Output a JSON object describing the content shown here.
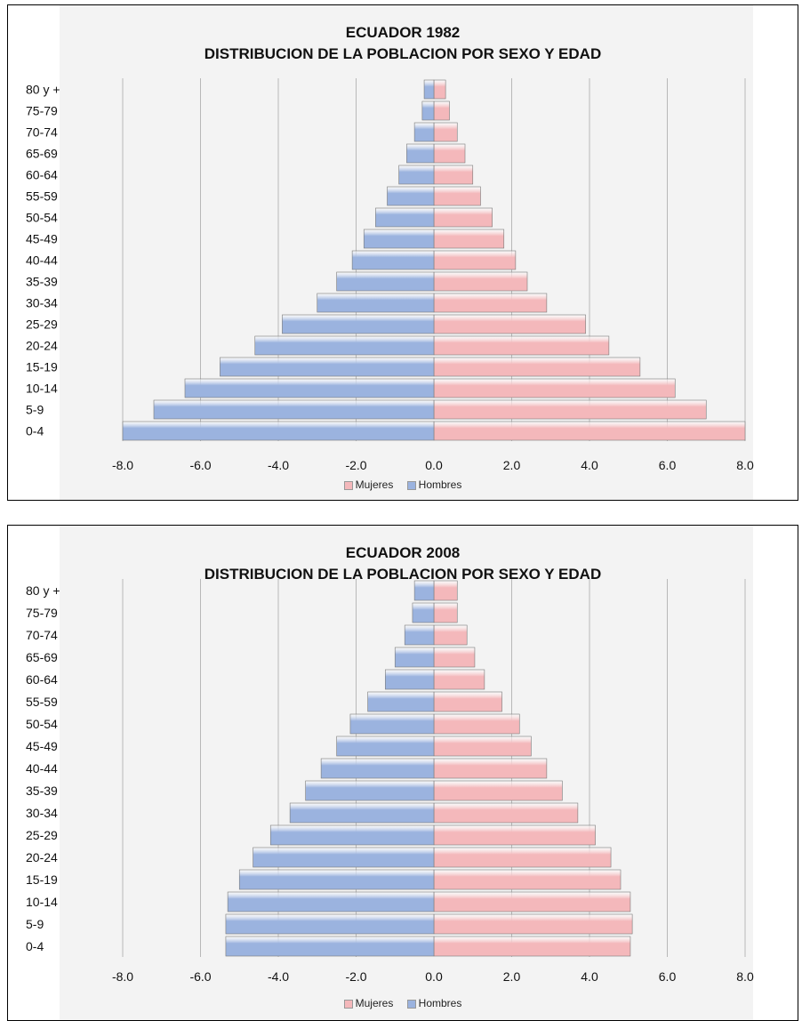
{
  "chart_data": [
    {
      "type": "bar",
      "orientation": "horizontal",
      "layout": "population-pyramid",
      "title": "ECUADOR 1982",
      "subtitle": "DISTRIBUCION DE LA POBLACION POR SEXO Y EDAD",
      "categories": [
        "80 y +",
        "75-79",
        "70-74",
        "65-69",
        "60-64",
        "55-59",
        "50-54",
        "45-49",
        "40-44",
        "35-39",
        "30-34",
        "25-29",
        "20-24",
        "15-19",
        "10-14",
        "5-9",
        "0-4"
      ],
      "series": [
        {
          "name": "Mujeres",
          "color": "#f4b8bb",
          "values": [
            0.3,
            0.4,
            0.6,
            0.8,
            1.0,
            1.2,
            1.5,
            1.8,
            2.1,
            2.4,
            2.9,
            3.9,
            4.5,
            5.3,
            6.2,
            7.0,
            8.0
          ]
        },
        {
          "name": "Hombres",
          "color": "#9bb3df",
          "values": [
            -0.25,
            -0.3,
            -0.5,
            -0.7,
            -0.9,
            -1.2,
            -1.5,
            -1.8,
            -2.1,
            -2.5,
            -3.0,
            -3.9,
            -4.6,
            -5.5,
            -6.4,
            -7.2,
            -8.0
          ]
        }
      ],
      "x_ticks": [
        "-8.0",
        "-6.0",
        "-4.0",
        "-2.0",
        "0.0",
        "2.0",
        "4.0",
        "6.0",
        "8.0"
      ],
      "xlim": [
        -8,
        8
      ],
      "grid": true,
      "legend": "bottom"
    },
    {
      "type": "bar",
      "orientation": "horizontal",
      "layout": "population-pyramid",
      "title": "ECUADOR 2008",
      "subtitle": "DISTRIBUCION DE LA POBLACION POR SEXO Y EDAD",
      "categories": [
        "80 y +",
        "75-79",
        "70-74",
        "65-69",
        "60-64",
        "55-59",
        "50-54",
        "45-49",
        "40-44",
        "35-39",
        "30-34",
        "25-29",
        "20-24",
        "15-19",
        "10-14",
        "5-9",
        "0-4"
      ],
      "series": [
        {
          "name": "Mujeres",
          "color": "#f4b8bb",
          "values": [
            0.6,
            0.6,
            0.85,
            1.05,
            1.3,
            1.75,
            2.2,
            2.5,
            2.9,
            3.3,
            3.7,
            4.15,
            4.55,
            4.8,
            5.05,
            5.1,
            5.05
          ]
        },
        {
          "name": "Hombres",
          "color": "#9bb3df",
          "values": [
            -0.5,
            -0.55,
            -0.75,
            -1.0,
            -1.25,
            -1.7,
            -2.15,
            -2.5,
            -2.9,
            -3.3,
            -3.7,
            -4.2,
            -4.65,
            -5.0,
            -5.3,
            -5.35,
            -5.35
          ]
        }
      ],
      "x_ticks": [
        "-8.0",
        "-6.0",
        "-4.0",
        "-2.0",
        "0.0",
        "2.0",
        "4.0",
        "6.0",
        "8.0"
      ],
      "xlim": [
        -8,
        8
      ],
      "grid": true,
      "legend": "bottom"
    }
  ]
}
